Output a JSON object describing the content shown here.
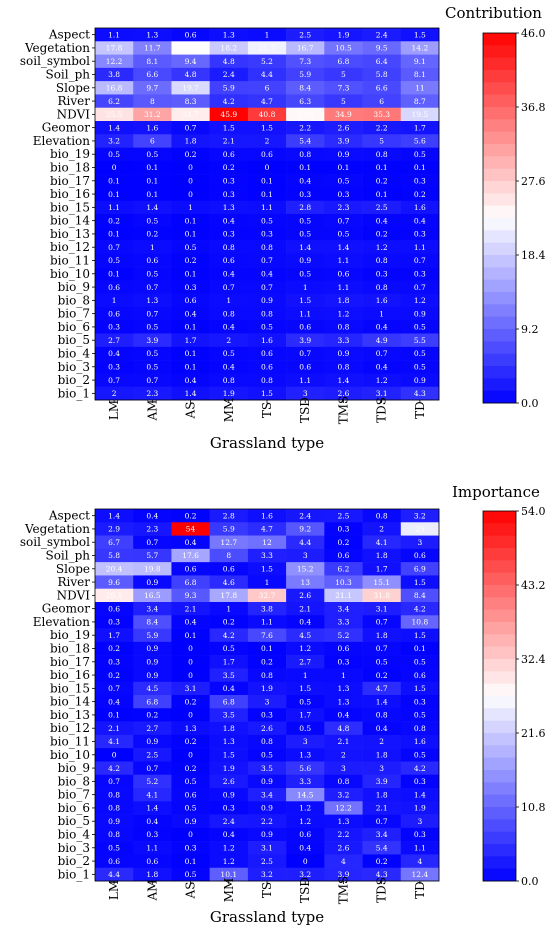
{
  "chart_data": [
    {
      "type": "heatmap",
      "xlabel": "Grassland type",
      "colorbar_label": "Contribution",
      "colorbar_ticks": [
        "46.0",
        "36.8",
        "27.6",
        "18.4",
        "9.2",
        "0.0"
      ],
      "vmin": 0,
      "vmax": 46,
      "columns": [
        "LM",
        "AM",
        "AS",
        "MM",
        "TS",
        "TSD",
        "TMS",
        "TDS",
        "TD"
      ],
      "rows": [
        "Aspect",
        "Vegetation",
        "soil_symbol",
        "Soil_ph",
        "Slope",
        "River",
        "NDVI",
        "Geomor",
        "Elevation",
        "bio_19",
        "bio_18",
        "bio_17",
        "bio_16",
        "bio_15",
        "bio_14",
        "bio_13",
        "bio_12",
        "bio_11",
        "bio_10",
        "bio_9",
        "bio_8",
        "bio_7",
        "bio_6",
        "bio_5",
        "bio_4",
        "bio_3",
        "bio_2",
        "bio_1"
      ],
      "values": [
        [
          "1.1",
          "1.3",
          "0.6",
          "1.3",
          "1",
          "2.5",
          "1.9",
          "2.4",
          "1.5"
        ],
        [
          "17.8",
          "11.7",
          "23.2",
          "18.2",
          "21.7",
          "16.7",
          "10.5",
          "9.5",
          "14.2"
        ],
        [
          "12.2",
          "8.1",
          "9.4",
          "4.8",
          "5.2",
          "7.3",
          "6.8",
          "6.4",
          "9.1"
        ],
        [
          "3.8",
          "6.6",
          "4.8",
          "2.4",
          "4.4",
          "5.9",
          "5",
          "5.8",
          "8.1"
        ],
        [
          "16.8",
          "9.7",
          "19.7",
          "5.9",
          "6",
          "8.4",
          "7.3",
          "6.6",
          "11"
        ],
        [
          "6.2",
          "8",
          "8.3",
          "4.2",
          "4.7",
          "6.3",
          "5",
          "6",
          "8.7"
        ],
        [
          "25.5",
          "31.2",
          "24.7",
          "45.9",
          "40.8",
          "23.6",
          "34.9",
          "35.3",
          "19.5"
        ],
        [
          "1.4",
          "1.6",
          "0.7",
          "1.5",
          "1.5",
          "2.2",
          "2.6",
          "2.2",
          "1.7"
        ],
        [
          "3.2",
          "6",
          "1.8",
          "2.1",
          "2",
          "5.4",
          "3.9",
          "5",
          "5.6"
        ],
        [
          "0.5",
          "0.5",
          "0.2",
          "0.6",
          "0.6",
          "0.8",
          "0.9",
          "0.8",
          "0.5"
        ],
        [
          "0",
          "0.1",
          "0",
          "0.2",
          "0",
          "0.1",
          "0.1",
          "0.1",
          "0.1"
        ],
        [
          "0.1",
          "0.1",
          "0",
          "0.3",
          "0.1",
          "0.4",
          "0.5",
          "0.2",
          "0.3"
        ],
        [
          "0.1",
          "0.1",
          "0",
          "0.3",
          "0.1",
          "0.3",
          "0.3",
          "0.1",
          "0.2"
        ],
        [
          "1.1",
          "1.4",
          "1",
          "1.3",
          "1.1",
          "2.8",
          "2.3",
          "2.5",
          "1.6"
        ],
        [
          "0.2",
          "0.5",
          "0.1",
          "0.4",
          "0.5",
          "0.5",
          "0.7",
          "0.4",
          "0.4"
        ],
        [
          "0.1",
          "0.2",
          "0.1",
          "0.3",
          "0.3",
          "0.5",
          "0.5",
          "0.2",
          "0.3"
        ],
        [
          "0.7",
          "1",
          "0.5",
          "0.8",
          "0.8",
          "1.4",
          "1.4",
          "1.2",
          "1.1"
        ],
        [
          "0.5",
          "0.6",
          "0.2",
          "0.6",
          "0.7",
          "0.9",
          "1.1",
          "0.8",
          "0.7"
        ],
        [
          "0.1",
          "0.5",
          "0.1",
          "0.4",
          "0.4",
          "0.5",
          "0.6",
          "0.3",
          "0.3"
        ],
        [
          "0.6",
          "0.7",
          "0.3",
          "0.7",
          "0.7",
          "1",
          "1.1",
          "0.8",
          "0.7"
        ],
        [
          "1",
          "1.3",
          "0.6",
          "1",
          "0.9",
          "1.5",
          "1.8",
          "1.6",
          "1.2"
        ],
        [
          "0.6",
          "0.7",
          "0.4",
          "0.8",
          "0.8",
          "1.1",
          "1.2",
          "1",
          "0.9"
        ],
        [
          "0.3",
          "0.5",
          "0.1",
          "0.4",
          "0.5",
          "0.6",
          "0.8",
          "0.4",
          "0.5"
        ],
        [
          "2.7",
          "3.9",
          "1.7",
          "2",
          "1.6",
          "3.9",
          "3.3",
          "4.9",
          "5.5"
        ],
        [
          "0.4",
          "0.5",
          "0.1",
          "0.5",
          "0.6",
          "0.7",
          "0.9",
          "0.7",
          "0.5"
        ],
        [
          "0.3",
          "0.5",
          "0.1",
          "0.4",
          "0.6",
          "0.6",
          "0.8",
          "0.4",
          "0.5"
        ],
        [
          "0.7",
          "0.7",
          "0.4",
          "0.8",
          "0.8",
          "1.1",
          "1.4",
          "1.2",
          "0.9"
        ],
        [
          "2",
          "2.3",
          "1.4",
          "1.9",
          "1.5",
          "3",
          "2.6",
          "3.1",
          "4.3"
        ]
      ]
    },
    {
      "type": "heatmap",
      "xlabel": "Grassland type",
      "colorbar_label": "Importance",
      "colorbar_ticks": [
        "54.0",
        "43.2",
        "32.4",
        "21.6",
        "10.8",
        "0.0"
      ],
      "vmin": 0,
      "vmax": 54,
      "columns": [
        "LM",
        "AM",
        "AS",
        "MM",
        "TS",
        "TSD",
        "TMS",
        "TDS",
        "TD"
      ],
      "rows": [
        "Aspect",
        "Vegetation",
        "soil_symbol",
        "Soil_ph",
        "Slope",
        "River",
        "NDVI",
        "Geomor",
        "Elevation",
        "bio_19",
        "bio_18",
        "bio_17",
        "bio_16",
        "bio_15",
        "bio_14",
        "bio_13",
        "bio_12",
        "bio_11",
        "bio_10",
        "bio_9",
        "bio_8",
        "bio_7",
        "bio_6",
        "bio_5",
        "bio_4",
        "bio_3",
        "bio_2",
        "bio_1"
      ],
      "values": [
        [
          "1.4",
          "0.4",
          "0.2",
          "2.8",
          "1.6",
          "2.4",
          "2.5",
          "0.8",
          "3.2"
        ],
        [
          "2.9",
          "2.3",
          "54",
          "5.9",
          "4.7",
          "9.2",
          "0.3",
          "2",
          "25"
        ],
        [
          "6.7",
          "0.7",
          "0.4",
          "12.7",
          "12",
          "4.4",
          "0.2",
          "4.1",
          "3"
        ],
        [
          "5.8",
          "5.7",
          "17.6",
          "8",
          "3.3",
          "3",
          "0.6",
          "1.8",
          "0.6"
        ],
        [
          "20.4",
          "19.8",
          "0.6",
          "0.6",
          "1.5",
          "15.2",
          "6.2",
          "1.7",
          "6.9"
        ],
        [
          "9.6",
          "0.9",
          "6.8",
          "4.6",
          "1",
          "13",
          "10.3",
          "15.1",
          "1.5"
        ],
        [
          "29.1",
          "16.5",
          "9.3",
          "17.8",
          "32.7",
          "2.6",
          "21.1",
          "31.8",
          "8.4"
        ],
        [
          "0.6",
          "3.4",
          "2.1",
          "1",
          "3.8",
          "2.1",
          "3.4",
          "3.1",
          "4.2"
        ],
        [
          "0.3",
          "8.4",
          "0.4",
          "0.2",
          "1.1",
          "0.4",
          "3.3",
          "0.7",
          "10.8"
        ],
        [
          "1.7",
          "5.9",
          "0.1",
          "4.2",
          "7.6",
          "4.5",
          "5.2",
          "1.8",
          "1.5"
        ],
        [
          "0.2",
          "0.9",
          "0",
          "0.5",
          "0.1",
          "1.2",
          "0.6",
          "0.7",
          "0.1"
        ],
        [
          "0.3",
          "0.9",
          "0",
          "1.7",
          "0.2",
          "2.7",
          "0.3",
          "0.5",
          "0.5"
        ],
        [
          "0.2",
          "0.9",
          "0",
          "3.5",
          "0.8",
          "1",
          "1",
          "0.2",
          "0.6"
        ],
        [
          "0.7",
          "4.5",
          "3.1",
          "0.4",
          "1.9",
          "1.5",
          "1.3",
          "4.7",
          "1.5"
        ],
        [
          "0.4",
          "6.8",
          "0.2",
          "6.8",
          "3",
          "0.5",
          "1.3",
          "1.4",
          "0.3"
        ],
        [
          "0.1",
          "0.2",
          "0",
          "3.5",
          "0.3",
          "1.7",
          "0.4",
          "0.8",
          "0.5"
        ],
        [
          "2.1",
          "2.7",
          "1.3",
          "1.8",
          "2.6",
          "0.5",
          "4.8",
          "0.4",
          "0.8"
        ],
        [
          "4.1",
          "0.9",
          "0.2",
          "1.3",
          "0.8",
          "3",
          "2.1",
          "2",
          "1.6"
        ],
        [
          "0",
          "2.5",
          "0",
          "1.5",
          "0.5",
          "1.3",
          "2",
          "1.8",
          "0.5"
        ],
        [
          "4.2",
          "0.7",
          "0.2",
          "1.9",
          "3.5",
          "5.6",
          "3",
          "3",
          "4.2"
        ],
        [
          "0.7",
          "5.2",
          "0.5",
          "2.6",
          "0.9",
          "3.3",
          "0.8",
          "3.9",
          "0.3"
        ],
        [
          "0.8",
          "4.1",
          "0.6",
          "0.9",
          "3.4",
          "14.5",
          "3.2",
          "1.8",
          "1.4"
        ],
        [
          "0.8",
          "1.4",
          "0.5",
          "0.3",
          "0.9",
          "1.2",
          "12.2",
          "2.1",
          "1.9"
        ],
        [
          "0.9",
          "0.4",
          "0.9",
          "2.4",
          "2.2",
          "1.2",
          "1.3",
          "0.7",
          "3"
        ],
        [
          "0.8",
          "0.3",
          "0",
          "0.4",
          "0.9",
          "0.6",
          "2.2",
          "3.4",
          "0.3"
        ],
        [
          "0.5",
          "1.1",
          "0.3",
          "1.2",
          "3.1",
          "0.4",
          "2.6",
          "5.4",
          "1.1"
        ],
        [
          "0.6",
          "0.6",
          "0.1",
          "1.2",
          "2.5",
          "0",
          "4",
          "0.2",
          "4"
        ],
        [
          "4.4",
          "1.8",
          "0.5",
          "10.1",
          "3.2",
          "3.2",
          "3.9",
          "4.3",
          "12.4"
        ]
      ]
    }
  ]
}
